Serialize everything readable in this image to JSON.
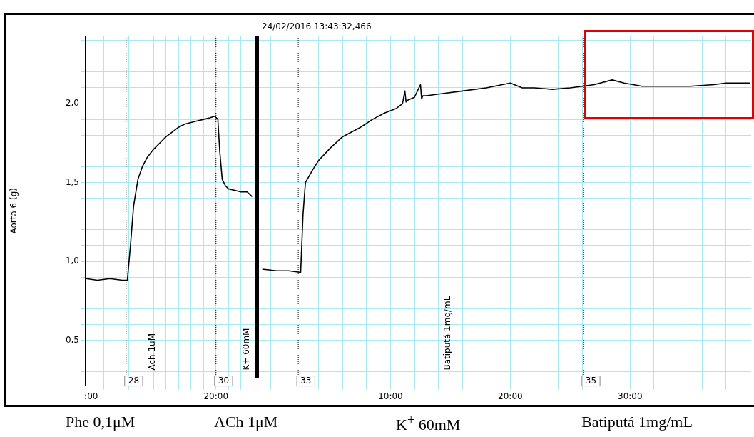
{
  "chart_data": [
    {
      "type": "line",
      "ylabel": "Aorta 6 (g)",
      "grid": true,
      "marker": "none",
      "line_style": "solid",
      "legend": false,
      "xlim": [
        -1,
        26.2
      ],
      "ylim": [
        0.21,
        2.43
      ],
      "xticks": [
        {
          "value": 0,
          "label": ":00"
        },
        {
          "value": 2,
          "label": null
        },
        {
          "value": 4,
          "label": null
        },
        {
          "value": 6,
          "label": null
        },
        {
          "value": 8,
          "label": null
        },
        {
          "value": 10,
          "label": null
        },
        {
          "value": 12,
          "label": null
        },
        {
          "value": 14,
          "label": null
        },
        {
          "value": 16,
          "label": null
        },
        {
          "value": 18,
          "label": null
        },
        {
          "value": 20,
          "label": "20:00"
        },
        {
          "value": 22,
          "label": null
        },
        {
          "value": 24,
          "label": null
        }
      ],
      "yticks": [
        {
          "value": 0.3,
          "label": null
        },
        {
          "value": 0.4,
          "label": null
        },
        {
          "value": 0.5,
          "label": "0,5"
        },
        {
          "value": 0.6,
          "label": null
        },
        {
          "value": 0.7,
          "label": null
        },
        {
          "value": 0.8,
          "label": null
        },
        {
          "value": 0.9,
          "label": null
        },
        {
          "value": 1.0,
          "label": "1,0"
        },
        {
          "value": 1.1,
          "label": null
        },
        {
          "value": 1.2,
          "label": null
        },
        {
          "value": 1.3,
          "label": null
        },
        {
          "value": 1.4,
          "label": null
        },
        {
          "value": 1.5,
          "label": "1,5"
        },
        {
          "value": 1.6,
          "label": null
        },
        {
          "value": 1.7,
          "label": null
        },
        {
          "value": 1.8,
          "label": null
        },
        {
          "value": 1.9,
          "label": null
        },
        {
          "value": 2.0,
          "label": "2,0"
        },
        {
          "value": 2.1,
          "label": null
        },
        {
          "value": 2.2,
          "label": null
        },
        {
          "value": 2.3,
          "label": null
        },
        {
          "value": 2.4,
          "label": null
        }
      ],
      "series": [
        {
          "color": "#000000",
          "x": [
            -0.8,
            1,
            3,
            5,
            5.8,
            6.3,
            6.8,
            7.5,
            8.2,
            9,
            10,
            11,
            12,
            13,
            14,
            15,
            16,
            17,
            18,
            19,
            19.8,
            20.3,
            20.6,
            21,
            21.5,
            22,
            23,
            24,
            25,
            25.8
          ],
          "values": [
            0.89,
            0.88,
            0.89,
            0.88,
            0.88,
            1.1,
            1.35,
            1.52,
            1.6,
            1.66,
            1.71,
            1.75,
            1.79,
            1.82,
            1.85,
            1.87,
            1.88,
            1.89,
            1.9,
            1.91,
            1.92,
            1.9,
            1.7,
            1.52,
            1.48,
            1.46,
            1.45,
            1.44,
            1.44,
            1.41
          ]
        }
      ],
      "ref_lines": [
        {
          "axis": "x",
          "value": 5.6
        },
        {
          "axis": "x",
          "value": 20
        }
      ],
      "annotations": [
        {
          "text": "28",
          "x": 5.6
        },
        {
          "text": "30",
          "x": 20
        },
        "Ach 1uM",
        "K+ 60mM",
        "Phe 0,1μM",
        "ACh 1μM"
      ]
    },
    {
      "type": "line",
      "grid": true,
      "marker": "none",
      "line_style": "solid",
      "legend": false,
      "tick_labels": "x",
      "xlim": [
        -1.1,
        40.1
      ],
      "ylim": [
        0.21,
        2.43
      ],
      "xticks": [
        {
          "value": 0,
          "label": null
        },
        {
          "value": 2,
          "label": null
        },
        {
          "value": 4,
          "label": null
        },
        {
          "value": 6,
          "label": null
        },
        {
          "value": 8,
          "label": null
        },
        {
          "value": 10,
          "label": "10:00"
        },
        {
          "value": 12,
          "label": null
        },
        {
          "value": 14,
          "label": null
        },
        {
          "value": 16,
          "label": null
        },
        {
          "value": 18,
          "label": null
        },
        {
          "value": 20,
          "label": "20:00"
        },
        {
          "value": 22,
          "label": null
        },
        {
          "value": 24,
          "label": null
        },
        {
          "value": 26,
          "label": null
        },
        {
          "value": 28,
          "label": null
        },
        {
          "value": 30,
          "label": "30:00"
        },
        {
          "value": 32,
          "label": null
        },
        {
          "value": 34,
          "label": null
        },
        {
          "value": 36,
          "label": null
        },
        {
          "value": 38,
          "label": null
        },
        {
          "value": 40,
          "label": null
        }
      ],
      "yticks": [
        {
          "value": 0.3,
          "label": null
        },
        {
          "value": 0.4,
          "label": null
        },
        {
          "value": 0.5,
          "label": null
        },
        {
          "value": 0.6,
          "label": null
        },
        {
          "value": 0.7,
          "label": null
        },
        {
          "value": 0.8,
          "label": null
        },
        {
          "value": 0.9,
          "label": null
        },
        {
          "value": 1.0,
          "label": null
        },
        {
          "value": 1.1,
          "label": null
        },
        {
          "value": 1.2,
          "label": null
        },
        {
          "value": 1.3,
          "label": null
        },
        {
          "value": 1.4,
          "label": null
        },
        {
          "value": 1.5,
          "label": null
        },
        {
          "value": 1.6,
          "label": null
        },
        {
          "value": 1.7,
          "label": null
        },
        {
          "value": 1.8,
          "label": null
        },
        {
          "value": 1.9,
          "label": null
        },
        {
          "value": 2.0,
          "label": null
        },
        {
          "value": 2.1,
          "label": null
        },
        {
          "value": 2.2,
          "label": null
        },
        {
          "value": 2.3,
          "label": null
        },
        {
          "value": 2.4,
          "label": null
        }
      ],
      "series": [
        {
          "color": "#000000",
          "x": [
            -0.7,
            0.5,
            1.5,
            2.5,
            2.7,
            2.9,
            3.5,
            4,
            5,
            6,
            7.5,
            8.5,
            9.5,
            10.5,
            11,
            11.2,
            11.3,
            11.4,
            12,
            12.5,
            12.6,
            12.7,
            13,
            14,
            16,
            18,
            20,
            21,
            22,
            23.5,
            25,
            26,
            27,
            28.5,
            29.5,
            31,
            33,
            35,
            37,
            38,
            40
          ],
          "values": [
            0.95,
            0.94,
            0.94,
            0.93,
            1.3,
            1.5,
            1.58,
            1.64,
            1.72,
            1.79,
            1.85,
            1.9,
            1.94,
            1.97,
            2.0,
            2.08,
            2.01,
            2.02,
            2.04,
            2.12,
            2.03,
            2.05,
            2.05,
            2.06,
            2.08,
            2.1,
            2.13,
            2.1,
            2.1,
            2.09,
            2.1,
            2.11,
            2.12,
            2.15,
            2.13,
            2.11,
            2.11,
            2.11,
            2.12,
            2.13,
            2.13
          ]
        }
      ],
      "ref_lines": [
        {
          "axis": "x",
          "value": 2.3
        },
        {
          "axis": "x",
          "value": 26.1
        }
      ],
      "annotations": [
        {
          "text": "33",
          "x": 2.3
        },
        {
          "text": "35",
          "x": 26.1
        },
        "24/02/2016 13:43:32,466",
        "Batiputá 1mg/mL",
        "K$^{+}$ 60mM",
        "Batiputá 1mg/mL"
      ]
    }
  ]
}
